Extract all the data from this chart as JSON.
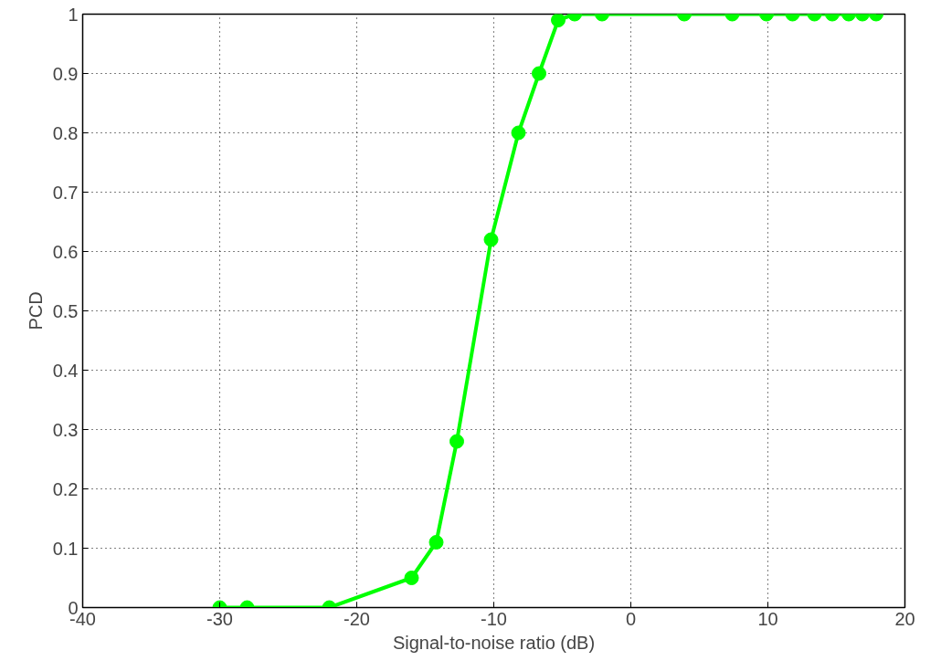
{
  "chart_data": {
    "type": "line",
    "xlabel": "Signal-to-noise ratio (dB)",
    "ylabel": "PCD",
    "x": [
      -30,
      -28,
      -22,
      -16,
      -14.2,
      -12.7,
      -10.2,
      -8.2,
      -6.7,
      -5.3,
      -4.1,
      -2.1,
      3.9,
      7.4,
      9.9,
      11.8,
      13.4,
      14.7,
      15.9,
      16.9,
      17.9
    ],
    "series": [
      {
        "color": "#00ff00",
        "values": [
          0,
          0,
          0,
          0.05,
          0.11,
          0.28,
          0.62,
          0.8,
          0.9,
          0.99,
          1,
          1,
          1,
          1,
          1,
          1,
          1,
          1,
          1,
          1,
          1
        ]
      }
    ],
    "xlim": [
      -40,
      20
    ],
    "ylim": [
      0,
      1
    ],
    "xticks": [
      -40,
      -30,
      -20,
      -10,
      0,
      10,
      20
    ],
    "yticks": [
      0,
      0.1,
      0.2,
      0.3,
      0.4,
      0.5,
      0.6,
      0.7,
      0.8,
      0.9,
      1
    ],
    "grid": true,
    "marker": "circle",
    "line_style": "solid"
  }
}
